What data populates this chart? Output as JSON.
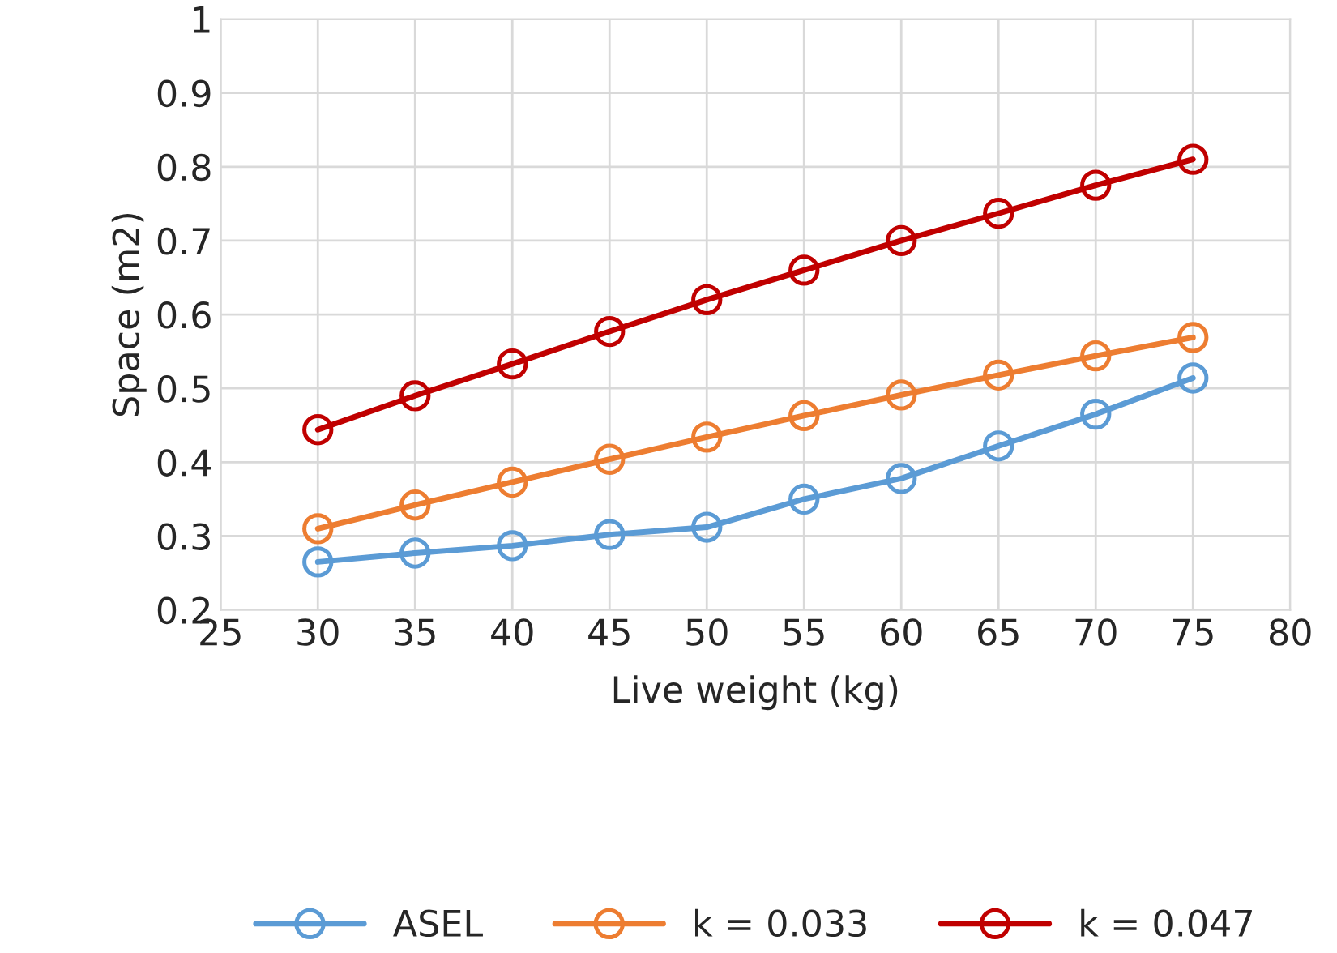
{
  "chart_data": {
    "type": "line",
    "xlabel": "Live weight (kg)",
    "ylabel": "Space (m2)",
    "x": [
      30,
      35,
      40,
      45,
      50,
      55,
      60,
      65,
      70,
      75
    ],
    "series": [
      {
        "name": "ASEL",
        "color": "#5b9bd5",
        "values": [
          0.265,
          0.277,
          0.287,
          0.302,
          0.312,
          0.35,
          0.378,
          0.422,
          0.465,
          0.514
        ]
      },
      {
        "name": "k = 0.033",
        "color": "#ed7d31",
        "values": [
          0.31,
          0.342,
          0.373,
          0.404,
          0.434,
          0.463,
          0.491,
          0.518,
          0.544,
          0.569
        ]
      },
      {
        "name": "k = 0.047",
        "color": "#c00000",
        "values": [
          0.444,
          0.49,
          0.533,
          0.577,
          0.62,
          0.66,
          0.7,
          0.737,
          0.775,
          0.81
        ]
      }
    ],
    "xlim": [
      25,
      80
    ],
    "xticks": [
      25,
      30,
      35,
      40,
      45,
      50,
      55,
      60,
      65,
      70,
      75,
      80
    ],
    "ylim": [
      0.2,
      1
    ],
    "yticks": [
      0.2,
      0.3,
      0.4,
      0.5,
      0.6,
      0.7,
      0.8,
      0.9,
      1
    ],
    "grid": true,
    "legend": "bottom",
    "marker": "circle",
    "line_style": "solid"
  }
}
